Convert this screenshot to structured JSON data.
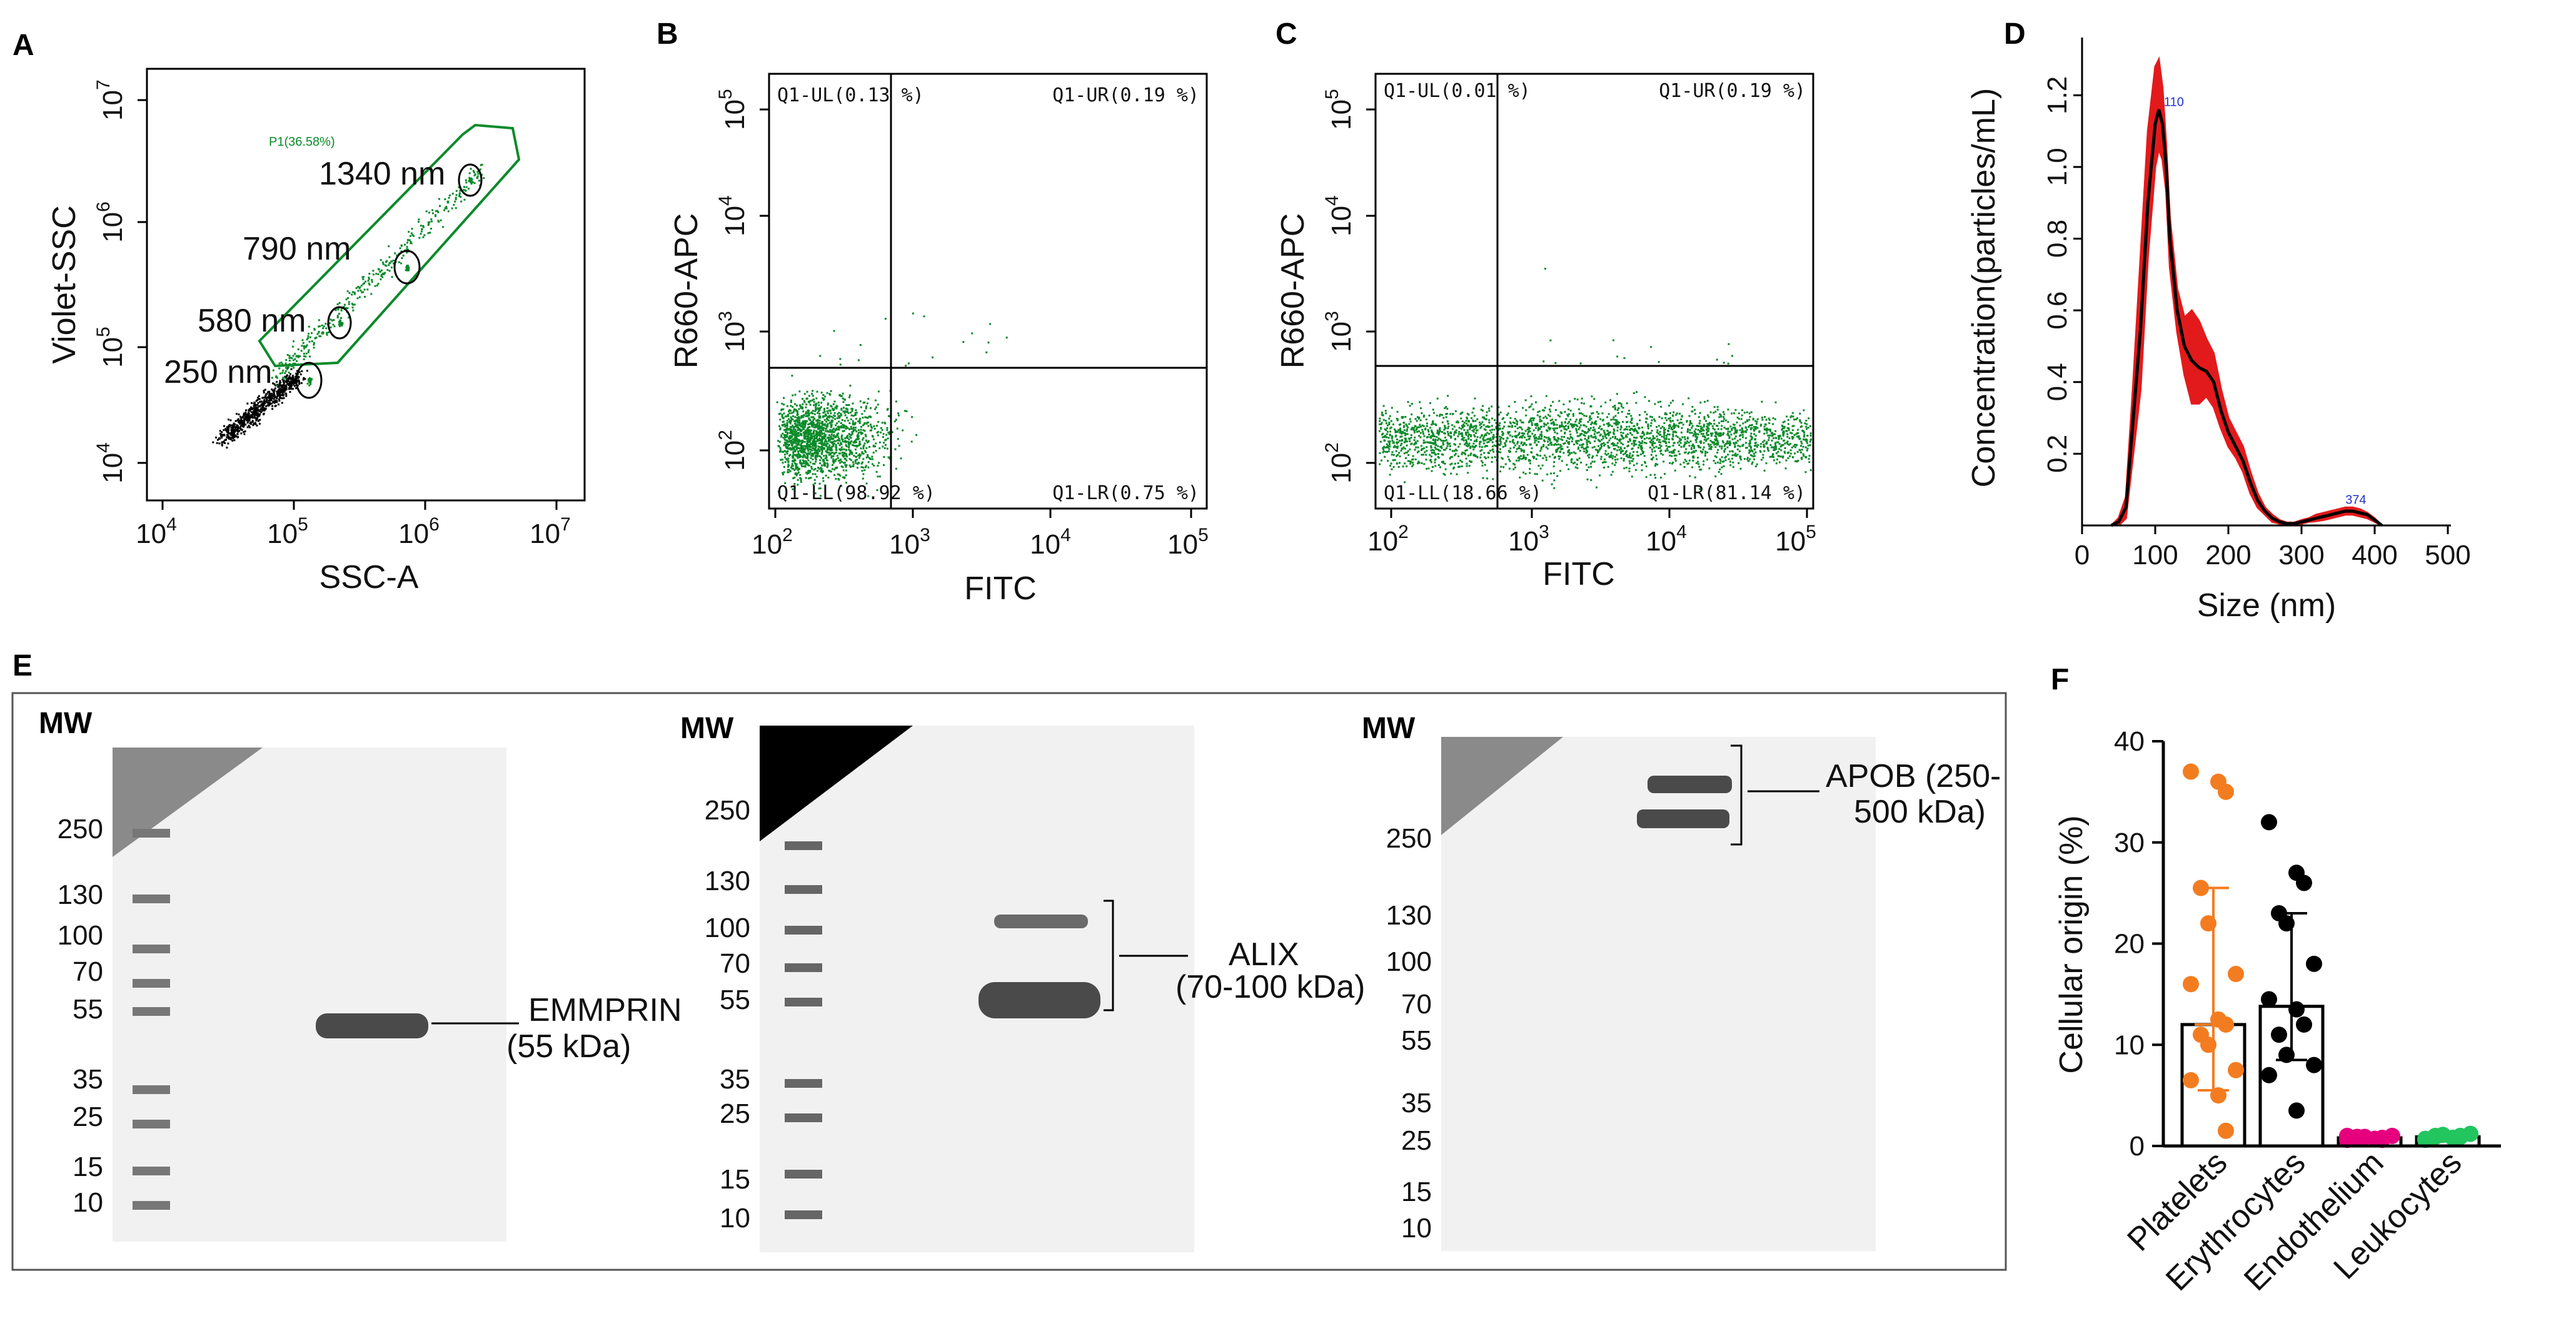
{
  "colors": {
    "green": "#0a8a2a",
    "black": "#000000",
    "red": "#e31a1c",
    "orange": "#f47c20",
    "magenta": "#e6007e",
    "lime": "#22c55e",
    "blue": "#2233cc",
    "blot_bg": "#f1f1f1",
    "band": "#4a4a4a"
  },
  "panel_a": {
    "letter": "A",
    "xlabel": "SSC-A",
    "ylabel": "Violet-SSC",
    "xticks": [
      {
        "base": "10",
        "exp": "4"
      },
      {
        "base": "10",
        "exp": "5"
      },
      {
        "base": "10",
        "exp": "6"
      },
      {
        "base": "10",
        "exp": "7"
      }
    ],
    "yticks": [
      {
        "base": "10",
        "exp": "4"
      },
      {
        "base": "10",
        "exp": "5"
      },
      {
        "base": "10",
        "exp": "6"
      },
      {
        "base": "10",
        "exp": "7"
      }
    ],
    "gate_label": "P1(36.58%)",
    "beads": [
      {
        "label": "250 nm"
      },
      {
        "label": "580 nm"
      },
      {
        "label": "790 nm"
      },
      {
        "label": "1340 nm"
      }
    ]
  },
  "panel_b": {
    "letter": "B",
    "xlabel": "FITC",
    "ylabel": "R660-APC",
    "xticks": [
      {
        "base": "10",
        "exp": "2"
      },
      {
        "base": "10",
        "exp": "3"
      },
      {
        "base": "10",
        "exp": "4"
      },
      {
        "base": "10",
        "exp": "5"
      }
    ],
    "yticks": [
      {
        "base": "10",
        "exp": "2"
      },
      {
        "base": "10",
        "exp": "3"
      },
      {
        "base": "10",
        "exp": "4"
      },
      {
        "base": "10",
        "exp": "5"
      }
    ],
    "quadrants": {
      "ul": "Q1-UL(0.13 %)",
      "ur": "Q1-UR(0.19 %)",
      "ll": "Q1-LL(98.92 %)",
      "lr": "Q1-LR(0.75 %)"
    }
  },
  "panel_c": {
    "letter": "C",
    "xlabel": "FITC",
    "ylabel": "R660-APC",
    "xticks": [
      {
        "base": "10",
        "exp": "2"
      },
      {
        "base": "10",
        "exp": "3"
      },
      {
        "base": "10",
        "exp": "4"
      },
      {
        "base": "10",
        "exp": "5"
      }
    ],
    "yticks": [
      {
        "base": "10",
        "exp": "2"
      },
      {
        "base": "10",
        "exp": "3"
      },
      {
        "base": "10",
        "exp": "4"
      },
      {
        "base": "10",
        "exp": "5"
      }
    ],
    "quadrants": {
      "ul": "Q1-UL(0.01 %)",
      "ur": "Q1-UR(0.19 %)",
      "ll": "Q1-LL(18.66 %)",
      "lr": "Q1-LR(81.14 %)"
    }
  },
  "panel_e": {
    "letter": "E",
    "mw_label": "MW",
    "blots": [
      {
        "ladder": [
          "250",
          "130",
          "100",
          "70",
          "55",
          "35",
          "25",
          "15",
          "10"
        ],
        "annotation": [
          "EMMPRIN",
          "(55 kDa)"
        ]
      },
      {
        "ladder": [
          "250",
          "130",
          "100",
          "70",
          "55",
          "35",
          "25",
          "15",
          "10"
        ],
        "annotation": [
          "ALIX",
          "(70-100 kDa)"
        ]
      },
      {
        "ladder": [
          "250",
          "130",
          "100",
          "70",
          "55",
          "35",
          "25",
          "15",
          "10"
        ],
        "annotation": [
          "APOB (250-",
          "500 kDa)"
        ]
      }
    ]
  },
  "chart_data": [
    {
      "panel": "D",
      "type": "line",
      "title": "",
      "xlabel": "Size (nm)",
      "ylabel": "Concentration(particles/mL)",
      "xlim": [
        0,
        500
      ],
      "ylim": [
        0,
        1.3
      ],
      "xticks": [
        0,
        100,
        200,
        300,
        400,
        500
      ],
      "yticks": [
        0.2,
        0.4,
        0.6,
        0.8,
        1.0,
        1.2
      ],
      "peak_labels": [
        "110",
        "374"
      ],
      "x": [
        40,
        50,
        60,
        70,
        80,
        90,
        100,
        105,
        110,
        115,
        120,
        130,
        140,
        150,
        160,
        170,
        180,
        190,
        200,
        210,
        220,
        230,
        240,
        250,
        260,
        270,
        280,
        290,
        300,
        310,
        320,
        330,
        340,
        350,
        360,
        370,
        380,
        390,
        400,
        410
      ],
      "series": [
        {
          "name": "mean",
          "values": [
            0.0,
            0.01,
            0.05,
            0.3,
            0.55,
            0.9,
            1.12,
            1.16,
            1.12,
            1.0,
            0.8,
            0.6,
            0.5,
            0.46,
            0.44,
            0.43,
            0.4,
            0.32,
            0.26,
            0.22,
            0.18,
            0.12,
            0.07,
            0.04,
            0.02,
            0.01,
            0.005,
            0.005,
            0.01,
            0.015,
            0.02,
            0.025,
            0.03,
            0.035,
            0.04,
            0.04,
            0.035,
            0.03,
            0.015,
            0.0
          ]
        },
        {
          "name": "upper",
          "values": [
            0.0,
            0.02,
            0.08,
            0.4,
            0.75,
            1.1,
            1.28,
            1.3,
            1.22,
            1.06,
            0.86,
            0.66,
            0.58,
            0.6,
            0.57,
            0.52,
            0.48,
            0.38,
            0.3,
            0.26,
            0.22,
            0.15,
            0.09,
            0.05,
            0.03,
            0.015,
            0.008,
            0.008,
            0.015,
            0.02,
            0.03,
            0.035,
            0.04,
            0.045,
            0.05,
            0.05,
            0.045,
            0.035,
            0.02,
            0.0
          ]
        },
        {
          "name": "lower",
          "values": [
            0.0,
            0.0,
            0.02,
            0.2,
            0.38,
            0.75,
            1.0,
            1.05,
            1.02,
            0.93,
            0.72,
            0.54,
            0.42,
            0.34,
            0.34,
            0.36,
            0.33,
            0.27,
            0.22,
            0.19,
            0.15,
            0.09,
            0.05,
            0.03,
            0.01,
            0.005,
            0.002,
            0.002,
            0.005,
            0.01,
            0.012,
            0.015,
            0.02,
            0.025,
            0.03,
            0.03,
            0.025,
            0.02,
            0.01,
            0.0
          ]
        }
      ]
    },
    {
      "panel": "F",
      "type": "bar",
      "title": "",
      "xlabel": "",
      "ylabel": "Cellular origin (%)",
      "ylim": [
        0,
        40
      ],
      "yticks": [
        0,
        10,
        20,
        30,
        40
      ],
      "categories": [
        "Platelets",
        "Erythrocytes",
        "Endothelium",
        "Leukocytes"
      ],
      "values": [
        12.0,
        13.8,
        0.8,
        0.9
      ],
      "error_low": [
        5.5,
        8.5,
        0.5,
        0.6
      ],
      "error_high": [
        25.5,
        23.0,
        1.1,
        1.2
      ],
      "points": [
        [
          37,
          36,
          35,
          25.5,
          22,
          17,
          16,
          12.5,
          12,
          11,
          10,
          7.5,
          6.5,
          5,
          1.5
        ],
        [
          32,
          27,
          26,
          23,
          22,
          18,
          14.5,
          13.5,
          12,
          11,
          9,
          8,
          7,
          3.5
        ],
        [
          0.6,
          0.7,
          0.8,
          0.8,
          0.9,
          1.0,
          1.0,
          0.7,
          0.6,
          0.9
        ],
        [
          0.7,
          0.8,
          0.9,
          1.0,
          1.1,
          1.2,
          0.6,
          0.8,
          1.0,
          0.9
        ]
      ]
    }
  ]
}
